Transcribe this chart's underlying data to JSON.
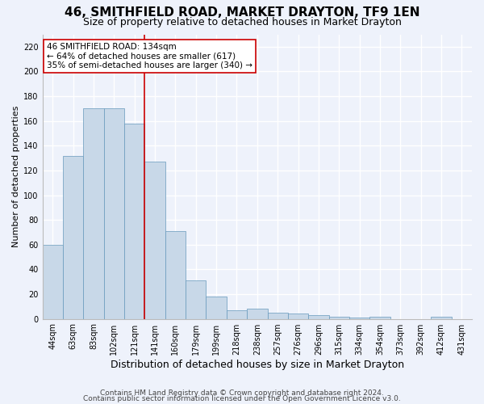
{
  "title": "46, SMITHFIELD ROAD, MARKET DRAYTON, TF9 1EN",
  "subtitle": "Size of property relative to detached houses in Market Drayton",
  "xlabel": "Distribution of detached houses by size in Market Drayton",
  "ylabel": "Number of detached properties",
  "footer_line1": "Contains HM Land Registry data © Crown copyright and database right 2024.",
  "footer_line2": "Contains public sector information licensed under the Open Government Licence v3.0.",
  "categories": [
    "44sqm",
    "63sqm",
    "83sqm",
    "102sqm",
    "121sqm",
    "141sqm",
    "160sqm",
    "179sqm",
    "199sqm",
    "218sqm",
    "238sqm",
    "257sqm",
    "276sqm",
    "296sqm",
    "315sqm",
    "334sqm",
    "354sqm",
    "373sqm",
    "392sqm",
    "412sqm",
    "431sqm"
  ],
  "values": [
    60,
    132,
    170,
    170,
    158,
    127,
    71,
    31,
    18,
    7,
    8,
    5,
    4,
    3,
    2,
    1,
    2,
    0,
    0,
    2,
    0
  ],
  "bar_color": "#c8d8e8",
  "bar_edge_color": "#6699bb",
  "annotation_line1": "46 SMITHFIELD ROAD: 134sqm",
  "annotation_line2": "← 64% of detached houses are smaller (617)",
  "annotation_line3": "35% of semi-detached houses are larger (340) →",
  "annotation_box_color": "#ffffff",
  "annotation_box_edge_color": "#cc0000",
  "vline_x": 4.5,
  "vline_color": "#cc0000",
  "ylim": [
    0,
    230
  ],
  "yticks": [
    0,
    20,
    40,
    60,
    80,
    100,
    120,
    140,
    160,
    180,
    200,
    220
  ],
  "background_color": "#eef2fb",
  "grid_color": "#ffffff",
  "title_fontsize": 11,
  "subtitle_fontsize": 9,
  "xlabel_fontsize": 9,
  "ylabel_fontsize": 8,
  "tick_fontsize": 7,
  "annotation_fontsize": 7.5,
  "footer_fontsize": 6.5
}
